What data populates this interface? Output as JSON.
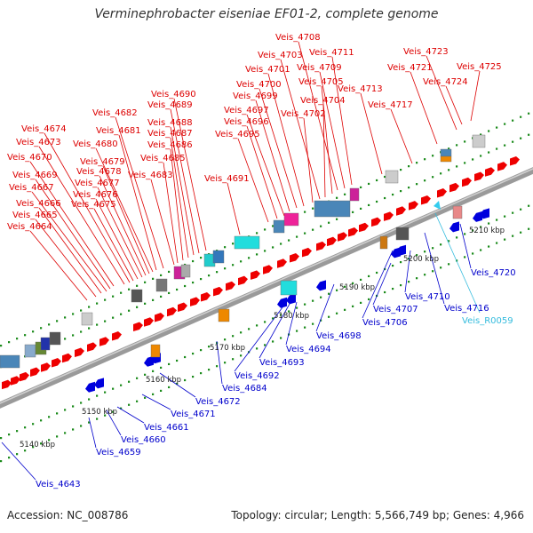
{
  "title": "Verminephrobacter eiseniae EF01-2, complete genome",
  "footer": {
    "accession": "Accession: NC_008786",
    "topology": "Topology: circular; Length: 5,566,749 bp; Genes: 4,966"
  },
  "colors": {
    "backbone": "#808080",
    "plus_gene": "#ee0000",
    "minus_gene": "#0000dd",
    "rna_gene": "#33ccee",
    "tick": "#1a8a1a",
    "label_plus": "#dd0000",
    "label_minus": "#0000cc",
    "label_rna": "#33bbdd"
  },
  "scale_labels": [
    "5140 kbp",
    "5150 kbp",
    "5160 kbp",
    "5170 kbp",
    "5180 kbp",
    "5190 kbp",
    "5200 kbp",
    "5210 kbp"
  ],
  "labels_plus": [
    "Veis_4664",
    "Veis_4665",
    "Veis_4666",
    "Veis_4667",
    "Veis_4669",
    "Veis_4670",
    "Veis_4673",
    "Veis_4674",
    "Veis_4675",
    "Veis_4676",
    "Veis_4677",
    "Veis_4678",
    "Veis_4679",
    "Veis_4680",
    "Veis_4681",
    "Veis_4682",
    "Veis_4683",
    "Veis_4685",
    "Veis_4686",
    "Veis_4687",
    "Veis_4688",
    "Veis_4689",
    "Veis_4690",
    "Veis_4691",
    "Veis_4695",
    "Veis_4696",
    "Veis_4697",
    "Veis_4699",
    "Veis_4700",
    "Veis_4701",
    "Veis_4702",
    "Veis_4703",
    "Veis_4704",
    "Veis_4705",
    "Veis_4708",
    "Veis_4709",
    "Veis_4711",
    "Veis_4713",
    "Veis_4717",
    "Veis_4721",
    "Veis_4723",
    "Veis_4724",
    "Veis_4725"
  ],
  "labels_minus": [
    "Veis_4643",
    "Veis_4659",
    "Veis_4660",
    "Veis_4661",
    "Veis_4671",
    "Veis_4672",
    "Veis_4684",
    "Veis_4692",
    "Veis_4693",
    "Veis_4694",
    "Veis_4698",
    "Veis_4706",
    "Veis_4707",
    "Veis_4710",
    "Veis_4716",
    "Veis_4720"
  ],
  "labels_rna": [
    "Veis_R0059"
  ]
}
